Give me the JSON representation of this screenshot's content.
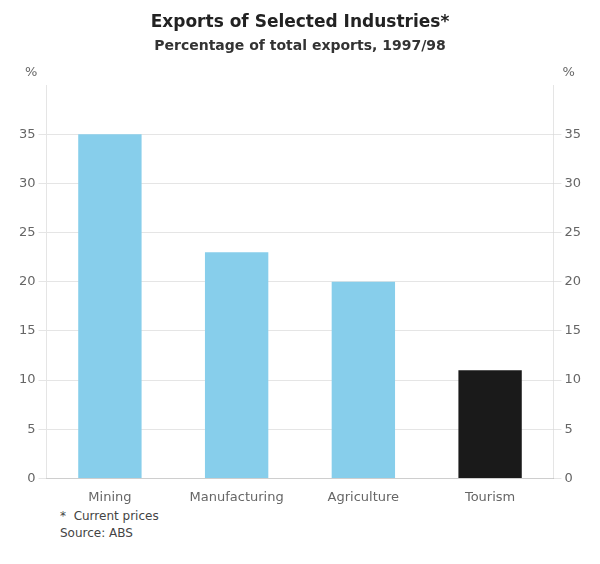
{
  "chart_data": {
    "type": "bar",
    "title": "Exports of Selected Industries*",
    "subtitle": "Percentage of total exports, 1997/98",
    "categories": [
      "Mining",
      "Manufacturing",
      "Agriculture",
      "Tourism"
    ],
    "values": [
      35,
      23,
      20,
      11
    ],
    "colors": [
      "#87CEEB",
      "#87CEEB",
      "#87CEEB",
      "#1a1a1a"
    ],
    "ylim": [
      0,
      40
    ],
    "yticks": [
      0,
      5,
      10,
      15,
      20,
      25,
      30,
      35
    ],
    "y2lim": [
      0,
      40
    ],
    "y2ticks": [
      0,
      5,
      10,
      15,
      20,
      25,
      30,
      35
    ],
    "ylabel": "%",
    "y2label": "%",
    "annotations": [
      "*  Current prices",
      "Source: ABS"
    ],
    "grid": true
  }
}
